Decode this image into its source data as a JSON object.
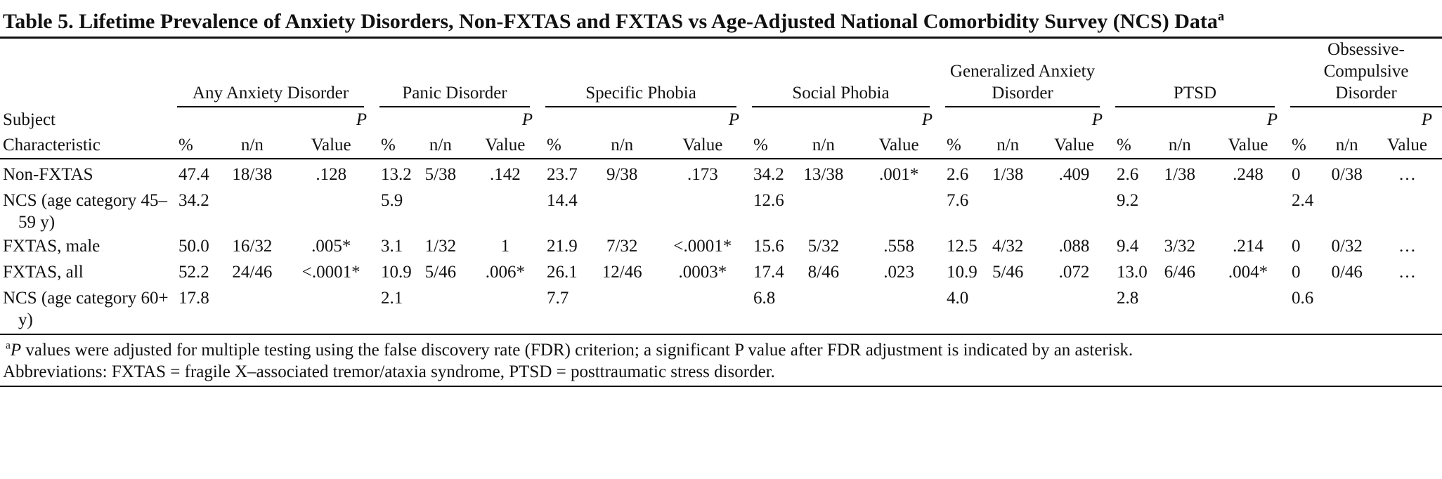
{
  "title": {
    "text": "Table 5. Lifetime Prevalence of Anxiety Disorders, Non-FXTAS and FXTAS vs Age-Adjusted National Comorbidity Survey (NCS) Data",
    "marker": "a"
  },
  "table": {
    "row_header": "Subject Characteristic",
    "groups": [
      "Any Anxiety Disorder",
      "Panic Disorder",
      "Specific Phobia",
      "Social Phobia",
      "Generalized Anxiety Disorder",
      "PTSD",
      "Obsessive-Compulsive Disorder"
    ],
    "subheaders": {
      "percent": "%",
      "count": "n/n",
      "p_italic": "P",
      "p_text": "Value"
    },
    "rows": [
      {
        "label": "Non-FXTAS",
        "cells": [
          "47.4",
          "18/38",
          ".128",
          "13.2",
          "5/38",
          ".142",
          "23.7",
          "9/38",
          ".173",
          "34.2",
          "13/38",
          ".001*",
          "2.6",
          "1/38",
          ".409",
          "2.6",
          "1/38",
          ".248",
          "0",
          "0/38",
          "…"
        ]
      },
      {
        "label": "NCS (age category 45–59 y)",
        "cells": [
          "34.2",
          null,
          null,
          "5.9",
          null,
          null,
          "14.4",
          null,
          null,
          "12.6",
          null,
          null,
          "7.6",
          null,
          null,
          "9.2",
          null,
          null,
          "2.4",
          null,
          null
        ]
      },
      {
        "label": "FXTAS, male",
        "cells": [
          "50.0",
          "16/32",
          ".005*",
          "3.1",
          "1/32",
          "1",
          "21.9",
          "7/32",
          "<.0001*",
          "15.6",
          "5/32",
          ".558",
          "12.5",
          "4/32",
          ".088",
          "9.4",
          "3/32",
          ".214",
          "0",
          "0/32",
          "…"
        ]
      },
      {
        "label": "FXTAS, all",
        "cells": [
          "52.2",
          "24/46",
          "<.0001*",
          "10.9",
          "5/46",
          ".006*",
          "26.1",
          "12/46",
          ".0003*",
          "17.4",
          "8/46",
          ".023",
          "10.9",
          "5/46",
          ".072",
          "13.0",
          "6/46",
          ".004*",
          "0",
          "0/46",
          "…"
        ]
      },
      {
        "label": "NCS (age category 60+ y)",
        "cells": [
          "17.8",
          null,
          null,
          "2.1",
          null,
          null,
          "7.7",
          null,
          null,
          "6.8",
          null,
          null,
          "4.0",
          null,
          null,
          "2.8",
          null,
          null,
          "0.6",
          null,
          null
        ]
      }
    ]
  },
  "footnotes": {
    "note": {
      "marker": "a",
      "italic": "P",
      "text": " values were adjusted for multiple testing using the false discovery rate (FDR) criterion; a significant P value after FDR adjustment is indicated by an asterisk."
    },
    "abbreviations": "Abbreviations: FXTAS = fragile X–associated tremor/ataxia syndrome, PTSD = posttraumatic stress disorder."
  }
}
